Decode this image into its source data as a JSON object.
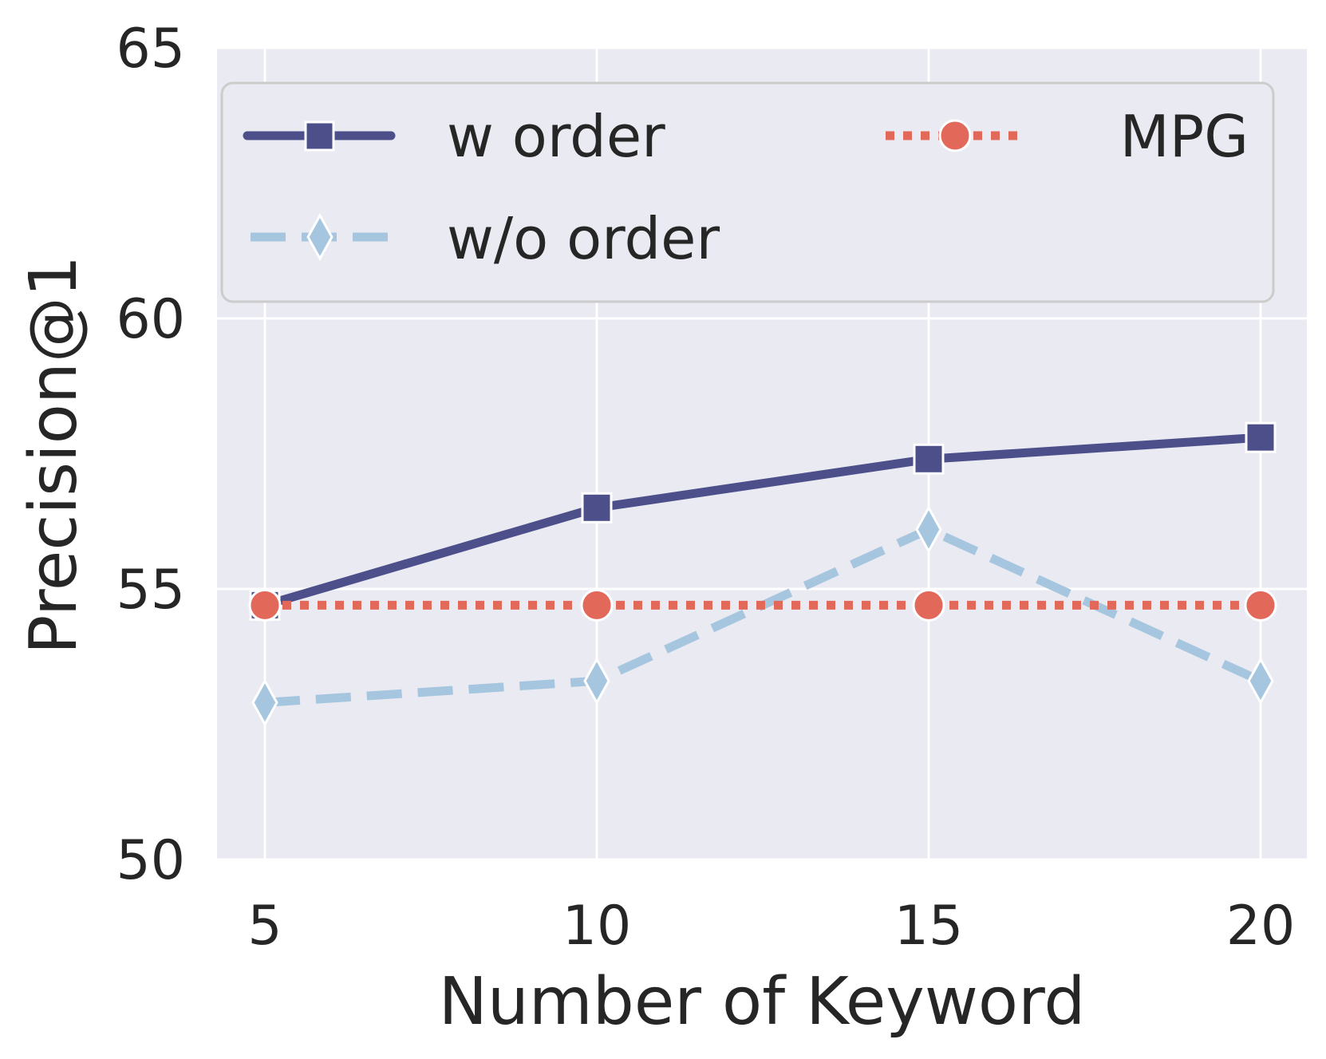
{
  "chart_data": {
    "type": "line",
    "xlabel": "Number of Keyword",
    "ylabel": "Precision@1",
    "x": [
      5,
      10,
      15,
      20
    ],
    "xticks": [
      "5",
      "10",
      "15",
      "20"
    ],
    "yticks": [
      "50",
      "55",
      "60",
      "65"
    ],
    "ylim": [
      50,
      65
    ],
    "grid": true,
    "legend_position": "top",
    "colors": {
      "background": "#eaeaf2",
      "grid": "#ffffff",
      "w_order": "#4c4f8a",
      "wo_order": "#a6c6df",
      "mpg": "#e2685a"
    },
    "series": [
      {
        "name": "w order",
        "values": [
          54.7,
          56.5,
          57.4,
          57.8
        ],
        "marker": "square",
        "line_style": "solid",
        "color": "#4c4f8a"
      },
      {
        "name": "w/o order",
        "values": [
          52.9,
          53.3,
          56.1,
          53.3
        ],
        "marker": "diamond",
        "line_style": "dashed",
        "color": "#a6c6df"
      },
      {
        "name": "MPG",
        "values": [
          54.7,
          54.7,
          54.7,
          54.7
        ],
        "marker": "circle",
        "line_style": "dotted",
        "color": "#e2685a"
      }
    ]
  }
}
